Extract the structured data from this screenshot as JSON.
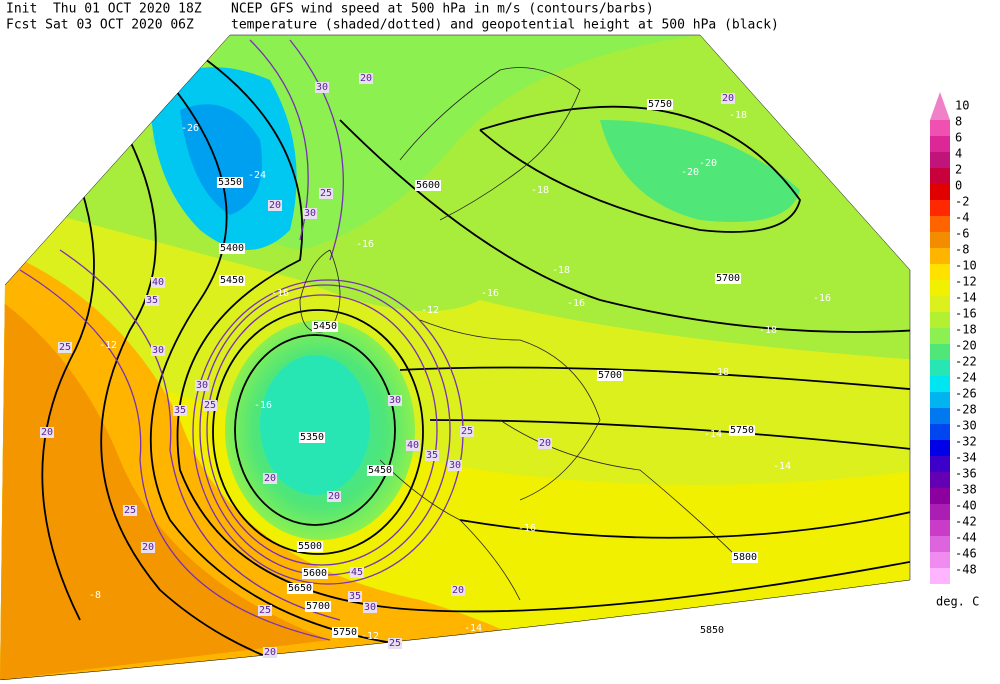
{
  "header": {
    "line1_left": "Init  Thu 01 OCT 2020 18Z",
    "line2_left": "Fcst Sat 03 OCT 2020 06Z",
    "line1_right": "NCEP GFS wind speed at 500 hPa in m/s (contours/barbs)",
    "line2_right": "temperature (shaded/dotted) and geopotential height at 500 hPa (black)"
  },
  "legend": {
    "unit": "deg. C",
    "values": [
      10,
      8,
      6,
      4,
      2,
      0,
      -2,
      -4,
      -6,
      -8,
      -10,
      -12,
      -14,
      -16,
      -18,
      -20,
      -22,
      -24,
      -26,
      -28,
      -30,
      -32,
      -34,
      -36,
      -38,
      -40,
      -42,
      -44,
      -46,
      -48
    ],
    "colors": [
      "#f080c8",
      "#f050b0",
      "#dc2896",
      "#c0147a",
      "#c8003c",
      "#e00000",
      "#ff2800",
      "#ff6400",
      "#f48c00",
      "#ffb400",
      "#ffe100",
      "#f0f000",
      "#dcf01e",
      "#b4f032",
      "#8cf050",
      "#50e678",
      "#28e6b4",
      "#00e6f0",
      "#00b4f0",
      "#0078f0",
      "#0046f0",
      "#0000e6",
      "#3c00c8",
      "#6400b4",
      "#8c00a0",
      "#aa1eb4",
      "#c83cc8",
      "#dc64dc",
      "#f08cf0",
      "#ffb4ff"
    ]
  },
  "height_labels": [
    "5350",
    "5400",
    "5450",
    "5350",
    "5450",
    "5500",
    "5600",
    "5650",
    "5700",
    "5750",
    "5800",
    "5850",
    "5700",
    "5750",
    "5700",
    "5750",
    "5600",
    "5450"
  ],
  "wind_labels": [
    "20",
    "20",
    "30",
    "25",
    "20",
    "30",
    "40",
    "35",
    "30",
    "25",
    "20",
    "25",
    "35",
    "30",
    "20",
    "20",
    "25",
    "20",
    "25",
    "20",
    "25",
    "35",
    "30",
    "45",
    "30",
    "40",
    "35",
    "25",
    "20",
    "20",
    "30"
  ],
  "temperature_labels": [
    "-26",
    "-24",
    "-18",
    "-20",
    "-20",
    "-18",
    "-16",
    "-16",
    "-18",
    "-16",
    "-16",
    "-18",
    "-18",
    "-14",
    "-14",
    "-16",
    "-12",
    "-12",
    "-16",
    "-14",
    "-14",
    "-12",
    "-8",
    "-16"
  ]
}
